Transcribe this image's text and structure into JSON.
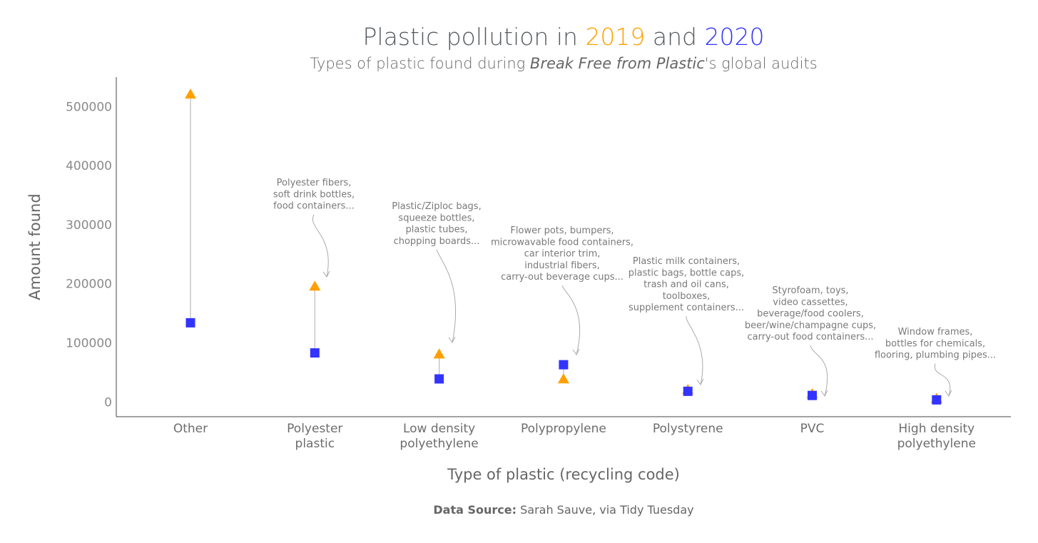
{
  "chart_data": {
    "type": "scatter",
    "title_parts": {
      "prefix": "Plastic pollution",
      "in": " in ",
      "year1": "2019",
      "and": " and ",
      "year2": "2020"
    },
    "subtitle_parts": {
      "before": "Types of plastic found during ",
      "italic": "Break Free from Plastic",
      "after": "'s global audits"
    },
    "xlabel": "Type of plastic (recycling code)",
    "ylabel": "Amount found",
    "ylim": [
      -25000,
      550000
    ],
    "yticks": [
      0,
      100000,
      200000,
      300000,
      400000,
      500000
    ],
    "categories": [
      {
        "lines": [
          "Other"
        ]
      },
      {
        "lines": [
          "Polyester",
          "plastic"
        ]
      },
      {
        "lines": [
          "Low density",
          "polyethylene"
        ]
      },
      {
        "lines": [
          "Polypropylene"
        ]
      },
      {
        "lines": [
          "Polystyrene"
        ]
      },
      {
        "lines": [
          "PVC"
        ]
      },
      {
        "lines": [
          "High density",
          "polyethylene"
        ]
      }
    ],
    "series": [
      {
        "name": "2019",
        "marker": "triangle",
        "color": "#FFA000",
        "values": [
          522000,
          197000,
          82000,
          40000,
          22000,
          15000,
          7000
        ]
      },
      {
        "name": "2020",
        "marker": "square",
        "color": "#3333FF",
        "values": [
          134000,
          83000,
          39000,
          63000,
          18000,
          11000,
          3500
        ]
      }
    ],
    "annotations": [
      {
        "category": 1,
        "lines": [
          "Polyester fibers,",
          "soft drink bottles,",
          "food containers..."
        ]
      },
      {
        "category": 2,
        "lines": [
          "Plastic/Ziploc bags,",
          "squeeze bottles,",
          "plastic tubes,",
          "chopping boards..."
        ]
      },
      {
        "category": 3,
        "lines": [
          "Flower pots, bumpers,",
          "microwavable food containers,",
          "car interior trim,",
          "industrial fibers,",
          "carry-out beverage cups..."
        ]
      },
      {
        "category": 4,
        "lines": [
          "Plastic milk containers,",
          "plastic bags, bottle caps,",
          "trash and oil cans,",
          "toolboxes,",
          "supplement containers..."
        ]
      },
      {
        "category": 5,
        "lines": [
          "Styrofoam, toys,",
          "video cassettes,",
          "beverage/food coolers,",
          "beer/wine/champagne cups,",
          "carry-out food containers..."
        ]
      },
      {
        "category": 6,
        "lines": [
          "Window frames,",
          "bottles for chemicals,",
          "flooring, plumbing pipes..."
        ]
      }
    ],
    "grid": false,
    "legend": "none"
  },
  "source": {
    "label": "Data Source:",
    "text": " Sarah Sauve, via Tidy Tuesday"
  },
  "colors": {
    "year1": "#FFA000",
    "year2": "#3333FF",
    "axis": "#444444",
    "segment": "#bbbbbb",
    "arrow": "#aaaaaa"
  }
}
